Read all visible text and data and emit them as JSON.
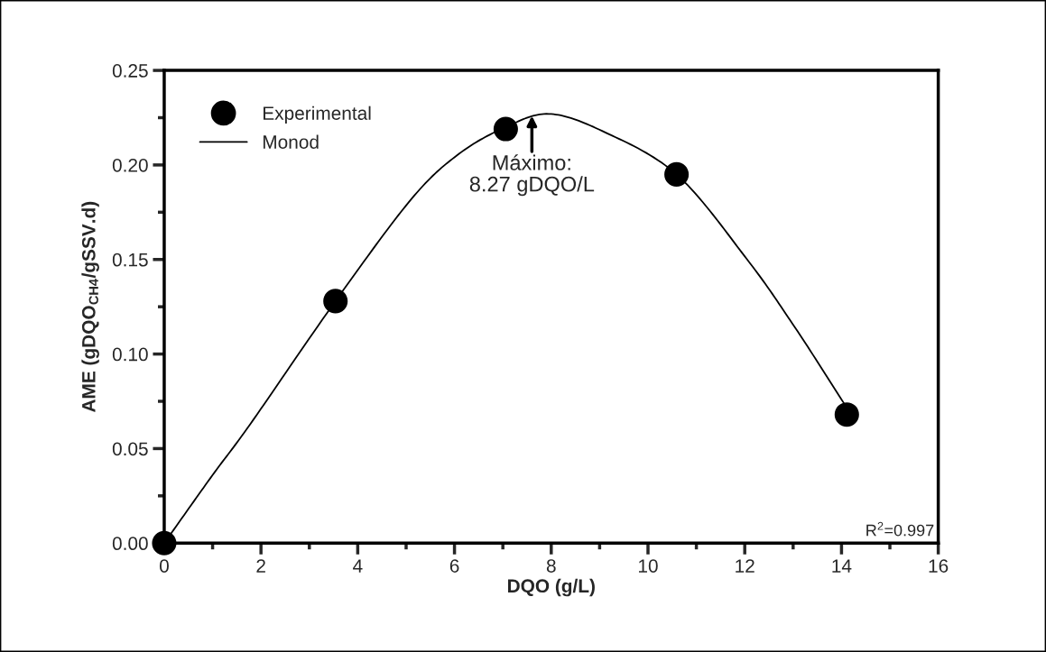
{
  "chart_data": {
    "type": "scatter",
    "xlabel": "DQO (g/L)",
    "ylabel": "AME (gDQO$_{CH4}$/gSSV.d)",
    "series": [
      {
        "name": "Experimental",
        "color": "#000000",
        "marker": "circle",
        "x": [
          0,
          3.54,
          7.06,
          10.59,
          14.11
        ],
        "values": [
          0,
          0.128,
          0.219,
          0.195,
          0.068
        ]
      },
      {
        "name": "Monod",
        "type": "line",
        "color": "#000000",
        "marker": "none",
        "line_style": "solid",
        "x": [
          0,
          1.0,
          1.78,
          3.54,
          5.11,
          6.1,
          7.06,
          7.95,
          9.05,
          10.59,
          12.05,
          13.04,
          14.1
        ],
        "values": [
          0,
          0.036,
          0.063,
          0.128,
          0.182,
          0.206,
          0.22,
          0.227,
          0.218,
          0.195,
          0.15,
          0.114,
          0.072
        ]
      }
    ],
    "xlim": [
      0,
      16
    ],
    "xticks": [
      0,
      {
        "value": 1,
        "label": null
      },
      2,
      {
        "value": 3,
        "label": null
      },
      4,
      {
        "value": 5,
        "label": null
      },
      6,
      {
        "value": 7,
        "label": null
      },
      8,
      {
        "value": 9,
        "label": null
      },
      10,
      {
        "value": 11,
        "label": null
      },
      12,
      {
        "value": 13,
        "label": null
      },
      14,
      {
        "value": 15,
        "label": null
      },
      16
    ],
    "ylim": [
      0,
      0.25
    ],
    "yticks": [
      {
        "value": 0,
        "label": "0.00"
      },
      {
        "value": 0.025,
        "label": null
      },
      {
        "value": 0.05,
        "label": "0.05"
      },
      {
        "value": 0.075,
        "label": null
      },
      {
        "value": 0.1,
        "label": "0.10"
      },
      {
        "value": 0.125,
        "label": null
      },
      {
        "value": 0.15,
        "label": "0.15"
      },
      {
        "value": 0.175,
        "label": null
      },
      {
        "value": 0.2,
        "label": "0.20"
      },
      {
        "value": 0.225,
        "label": null
      },
      {
        "value": 0.25,
        "label": "0.25"
      }
    ],
    "annotations": [
      {
        "text": "Máximo:\n8.27 gDQO/L",
        "x": 7.6,
        "y": 0.226
      },
      "R$^{2}$=0.997"
    ],
    "legend": "top left",
    "grid": false
  }
}
